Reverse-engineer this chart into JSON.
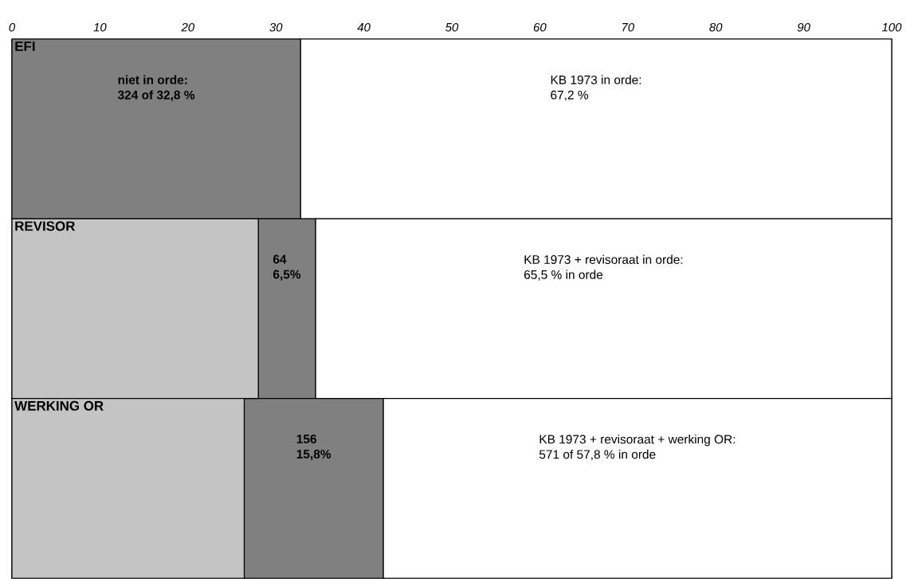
{
  "chart_data": {
    "type": "bar",
    "orientation": "horizontal",
    "stacked": true,
    "categories": [
      "EFI",
      "REVISOR",
      "WERKING OR"
    ],
    "xlim": [
      0,
      100
    ],
    "xticks": [
      0,
      10,
      20,
      30,
      40,
      50,
      60,
      70,
      80,
      90,
      100
    ],
    "series": [
      {
        "color": "#c4c4c4",
        "values": [
          0,
          28.0,
          26.4
        ]
      },
      {
        "color": "#808080",
        "values": [
          32.8,
          6.5,
          15.8
        ],
        "value_labels": [
          "niet in orde:\n324 of 32,8 %",
          "64\n6,5%",
          "156\n15,8%"
        ]
      },
      {
        "color": "#ffffff",
        "values": [
          67.2,
          65.5,
          57.8
        ],
        "value_labels": [
          "KB 1973 in orde:\n67,2 %",
          "KB 1973 + revisoraat in orde:\n65,5  % in orde",
          "KB 1973 + revisoraat + werking OR:\n571 of 57,8 % in orde"
        ]
      }
    ]
  }
}
